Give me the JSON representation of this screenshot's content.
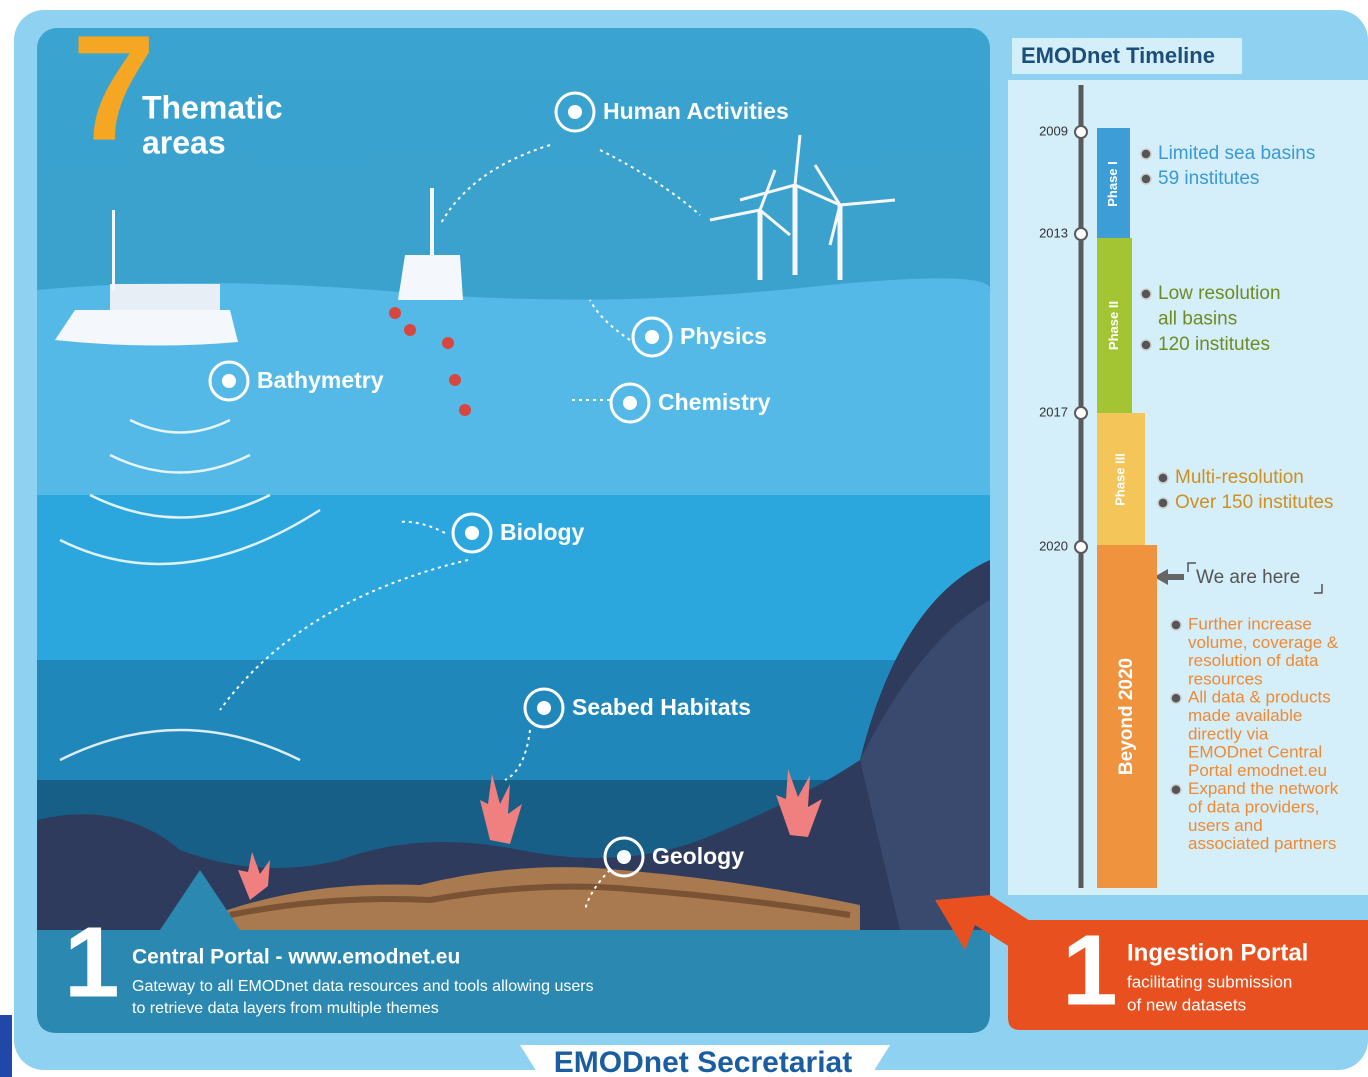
{
  "headline": {
    "number": "7",
    "lines": [
      "Thematic",
      "areas"
    ]
  },
  "areas": [
    "Human Activities",
    "Physics",
    "Bathymetry",
    "Chemistry",
    "Biology",
    "Seabed Habitats",
    "Geology"
  ],
  "central_portal": {
    "number": "1",
    "title": "Central Portal - www.emodnet.eu",
    "lines": [
      "Gateway to all EMODnet data resources and tools allowing users",
      "to retrieve data layers from multiple themes"
    ]
  },
  "ingestion_portal": {
    "number": "1",
    "title": "Ingestion Portal",
    "lines": [
      "facilitating submission",
      "of new datasets"
    ]
  },
  "timeline": {
    "title": "EMODnet Timeline",
    "years": [
      "2009",
      "2013",
      "2017",
      "2020"
    ],
    "phases": [
      {
        "label": "Phase I",
        "items": [
          [
            "Limited sea basins"
          ],
          [
            "59 institutes"
          ]
        ]
      },
      {
        "label": "Phase II",
        "items": [
          [
            "Low resolution",
            "all basins"
          ],
          [
            "120 institutes"
          ]
        ]
      },
      {
        "label": "Phase III",
        "items": [
          [
            "Multi-resolution"
          ],
          [
            "Over 150 institutes"
          ]
        ]
      },
      {
        "label": "Beyond 2020",
        "items": [
          [
            "Further increase",
            "volume, coverage &",
            "resolution of data",
            "resources"
          ],
          [
            "All data & products",
            "made available",
            "directly via",
            "EMODnet Central",
            "Portal emodnet.eu"
          ],
          [
            "Expand the network",
            "of data providers,",
            "users and",
            "associated partners"
          ]
        ]
      }
    ],
    "marker": "We are here"
  },
  "footer": "EMODnet Secretariat"
}
